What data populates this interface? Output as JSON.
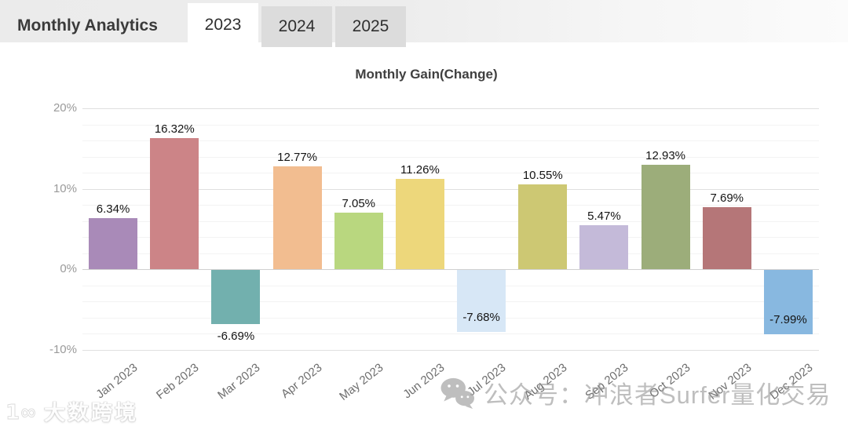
{
  "header": {
    "title": "Monthly Analytics",
    "tabs": [
      {
        "label": "2023",
        "active": true
      },
      {
        "label": "2024",
        "active": false
      },
      {
        "label": "2025",
        "active": false
      }
    ]
  },
  "chart_data": {
    "type": "bar",
    "title": "Monthly Gain(Change)",
    "categories": [
      "Jan 2023",
      "Feb 2023",
      "Mar 2023",
      "Apr 2023",
      "May 2023",
      "Jun 2023",
      "Jul 2023",
      "Aug 2023",
      "Sep 2023",
      "Oct 2023",
      "Nov 2023",
      "Dec 2023"
    ],
    "values": [
      6.34,
      16.32,
      -6.69,
      12.77,
      7.05,
      11.26,
      -7.68,
      10.55,
      5.47,
      12.93,
      7.69,
      -7.99
    ],
    "data_labels": [
      "6.34%",
      "16.32%",
      "-6.69%",
      "12.77%",
      "7.05%",
      "11.26%",
      "-7.68%",
      "10.55%",
      "5.47%",
      "12.93%",
      "7.69%",
      "-7.99%"
    ],
    "bar_colors": [
      "#a98ab8",
      "#cc8487",
      "#72b0ae",
      "#f2bd90",
      "#b9d77f",
      "#edd77b",
      "#d7e7f6",
      "#cdc873",
      "#c4bad9",
      "#9cad7a",
      "#b57678",
      "#88b8e0"
    ],
    "label_placement": [
      "above",
      "above",
      "below",
      "above",
      "above",
      "above",
      "inside",
      "above",
      "above",
      "above",
      "above",
      "inside"
    ],
    "y_axis": {
      "tick_values": [
        20,
        10,
        0,
        -10
      ],
      "tick_labels": [
        "20%",
        "10%",
        "0%",
        "-10%"
      ],
      "minor_step": 2,
      "range": [
        -10,
        20
      ]
    },
    "xlabel": "",
    "ylabel": "",
    "grid": true,
    "legend": false
  },
  "watermarks": {
    "center": {
      "icon": "wechat-icon",
      "text": "公众号：冲浪者Surfer量化交易"
    },
    "corner": {
      "icon": "dashu-kuajing-logo-icon",
      "text": "大数跨境"
    }
  }
}
